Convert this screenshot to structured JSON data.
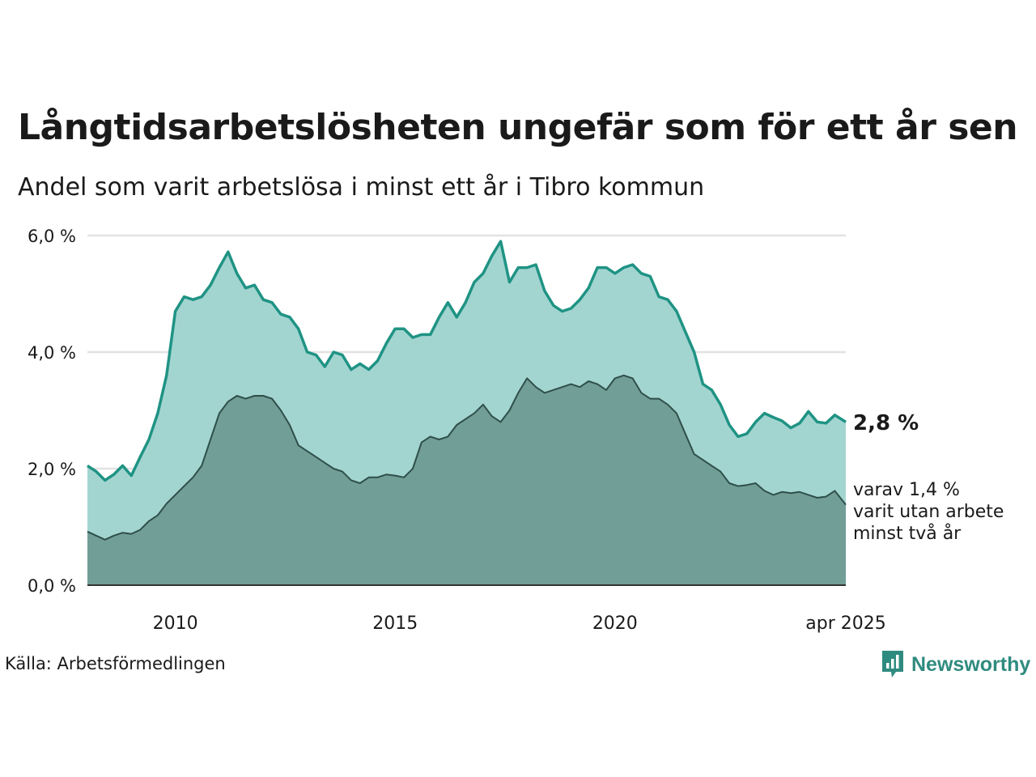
{
  "title": "Långtidsarbetslösheten ungefär som för ett år sen",
  "subtitle": "Andel som varit arbetslösa i minst ett år i Tibro kommun",
  "source": "Källa: Arbetsförmedlingen",
  "brand": {
    "name": "Newsworthy",
    "icon": "newsworthy-logo-icon"
  },
  "annotation": {
    "main": "2,8 %",
    "sub": [
      "varav 1,4 %",
      "varit utan arbete",
      "minst två år"
    ]
  },
  "colors": {
    "long_line": "#1f9384",
    "long_fill": "#a3d5d0",
    "two_line": "#2f4f4a",
    "two_fill": "#719e97",
    "grid": "#e2e2e2",
    "axis": "#333333"
  },
  "chart_data": {
    "type": "area",
    "title": "Långtidsarbetslösheten ungefär som för ett år sen",
    "subtitle": "Andel som varit arbetslösa i minst ett år i Tibro kommun",
    "xlabel": "",
    "ylabel": "",
    "x_range": [
      "2008-01",
      "2025-04"
    ],
    "ylim": [
      0,
      6
    ],
    "y_ticks": [
      0,
      2,
      4,
      6
    ],
    "y_tick_labels": [
      "0,0 %",
      "2,0 %",
      "4,0 %",
      "6,0 %"
    ],
    "x_ticks": [
      2010,
      2015,
      2020,
      2025.25
    ],
    "x_tick_labels": [
      "2010",
      "2015",
      "2020",
      "apr 2025"
    ],
    "grid": true,
    "series": [
      {
        "unit": "%",
        "x": [
          2008.0,
          2008.2,
          2008.4,
          2008.6,
          2008.8,
          2009.0,
          2009.2,
          2009.4,
          2009.6,
          2009.8,
          2010.0,
          2010.2,
          2010.4,
          2010.6,
          2010.8,
          2011.0,
          2011.2,
          2011.4,
          2011.6,
          2011.8,
          2012.0,
          2012.2,
          2012.4,
          2012.6,
          2012.8,
          2013.0,
          2013.2,
          2013.4,
          2013.6,
          2013.8,
          2014.0,
          2014.2,
          2014.4,
          2014.6,
          2014.8,
          2015.0,
          2015.2,
          2015.4,
          2015.6,
          2015.8,
          2016.0,
          2016.2,
          2016.4,
          2016.6,
          2016.8,
          2017.0,
          2017.2,
          2017.4,
          2017.6,
          2017.8,
          2018.0,
          2018.2,
          2018.4,
          2018.6,
          2018.8,
          2019.0,
          2019.2,
          2019.4,
          2019.6,
          2019.8,
          2020.0,
          2020.2,
          2020.4,
          2020.6,
          2020.8,
          2021.0,
          2021.2,
          2021.4,
          2021.6,
          2021.8,
          2022.0,
          2022.2,
          2022.4,
          2022.6,
          2022.8,
          2023.0,
          2023.2,
          2023.4,
          2023.6,
          2023.8,
          2024.0,
          2024.2,
          2024.4,
          2024.6,
          2024.8,
          2025.0,
          2025.25
        ],
        "values": [
          2.05,
          1.95,
          1.8,
          1.9,
          2.05,
          1.88,
          2.2,
          2.5,
          2.95,
          3.6,
          4.7,
          4.95,
          4.9,
          4.95,
          5.15,
          5.45,
          5.72,
          5.35,
          5.1,
          5.15,
          4.9,
          4.85,
          4.65,
          4.6,
          4.4,
          4.0,
          3.95,
          3.75,
          4.0,
          3.95,
          3.7,
          3.8,
          3.7,
          3.85,
          4.15,
          4.4,
          4.4,
          4.25,
          4.3,
          4.3,
          4.6,
          4.85,
          4.6,
          4.85,
          5.2,
          5.35,
          5.65,
          5.9,
          5.2,
          5.45,
          5.45,
          5.5,
          5.05,
          4.8,
          4.7,
          4.75,
          4.9,
          5.1,
          5.45,
          5.45,
          5.35,
          5.45,
          5.5,
          5.35,
          5.3,
          4.95,
          4.9,
          4.7,
          4.35,
          4.0,
          3.45,
          3.35,
          3.1,
          2.75,
          2.55,
          2.6,
          2.8,
          2.95,
          2.88,
          2.82,
          2.7,
          2.78,
          2.98,
          2.8,
          2.78,
          2.92,
          2.8
        ]
      },
      {
        "unit": "%",
        "x": [
          2008.0,
          2008.2,
          2008.4,
          2008.6,
          2008.8,
          2009.0,
          2009.2,
          2009.4,
          2009.6,
          2009.8,
          2010.0,
          2010.2,
          2010.4,
          2010.6,
          2010.8,
          2011.0,
          2011.2,
          2011.4,
          2011.6,
          2011.8,
          2012.0,
          2012.2,
          2012.4,
          2012.6,
          2012.8,
          2013.0,
          2013.2,
          2013.4,
          2013.6,
          2013.8,
          2014.0,
          2014.2,
          2014.4,
          2014.6,
          2014.8,
          2015.0,
          2015.2,
          2015.4,
          2015.6,
          2015.8,
          2016.0,
          2016.2,
          2016.4,
          2016.6,
          2016.8,
          2017.0,
          2017.2,
          2017.4,
          2017.6,
          2017.8,
          2018.0,
          2018.2,
          2018.4,
          2018.6,
          2018.8,
          2019.0,
          2019.2,
          2019.4,
          2019.6,
          2019.8,
          2020.0,
          2020.2,
          2020.4,
          2020.6,
          2020.8,
          2021.0,
          2021.2,
          2021.4,
          2021.6,
          2021.8,
          2022.0,
          2022.2,
          2022.4,
          2022.6,
          2022.8,
          2023.0,
          2023.2,
          2023.4,
          2023.6,
          2023.8,
          2024.0,
          2024.2,
          2024.4,
          2024.6,
          2024.8,
          2025.0,
          2025.25
        ],
        "values": [
          0.92,
          0.85,
          0.78,
          0.85,
          0.9,
          0.88,
          0.95,
          1.1,
          1.2,
          1.4,
          1.55,
          1.7,
          1.85,
          2.05,
          2.5,
          2.95,
          3.15,
          3.25,
          3.2,
          3.25,
          3.25,
          3.2,
          3.0,
          2.75,
          2.4,
          2.3,
          2.2,
          2.1,
          2.0,
          1.95,
          1.8,
          1.75,
          1.85,
          1.85,
          1.9,
          1.88,
          1.85,
          2.0,
          2.45,
          2.55,
          2.5,
          2.55,
          2.75,
          2.85,
          2.95,
          3.1,
          2.9,
          2.8,
          3.0,
          3.3,
          3.55,
          3.4,
          3.3,
          3.35,
          3.4,
          3.45,
          3.4,
          3.5,
          3.45,
          3.35,
          3.55,
          3.6,
          3.55,
          3.3,
          3.2,
          3.2,
          3.1,
          2.95,
          2.6,
          2.25,
          2.15,
          2.05,
          1.95,
          1.75,
          1.7,
          1.72,
          1.75,
          1.62,
          1.55,
          1.6,
          1.58,
          1.6,
          1.55,
          1.5,
          1.52,
          1.62,
          1.38
        ]
      }
    ]
  }
}
